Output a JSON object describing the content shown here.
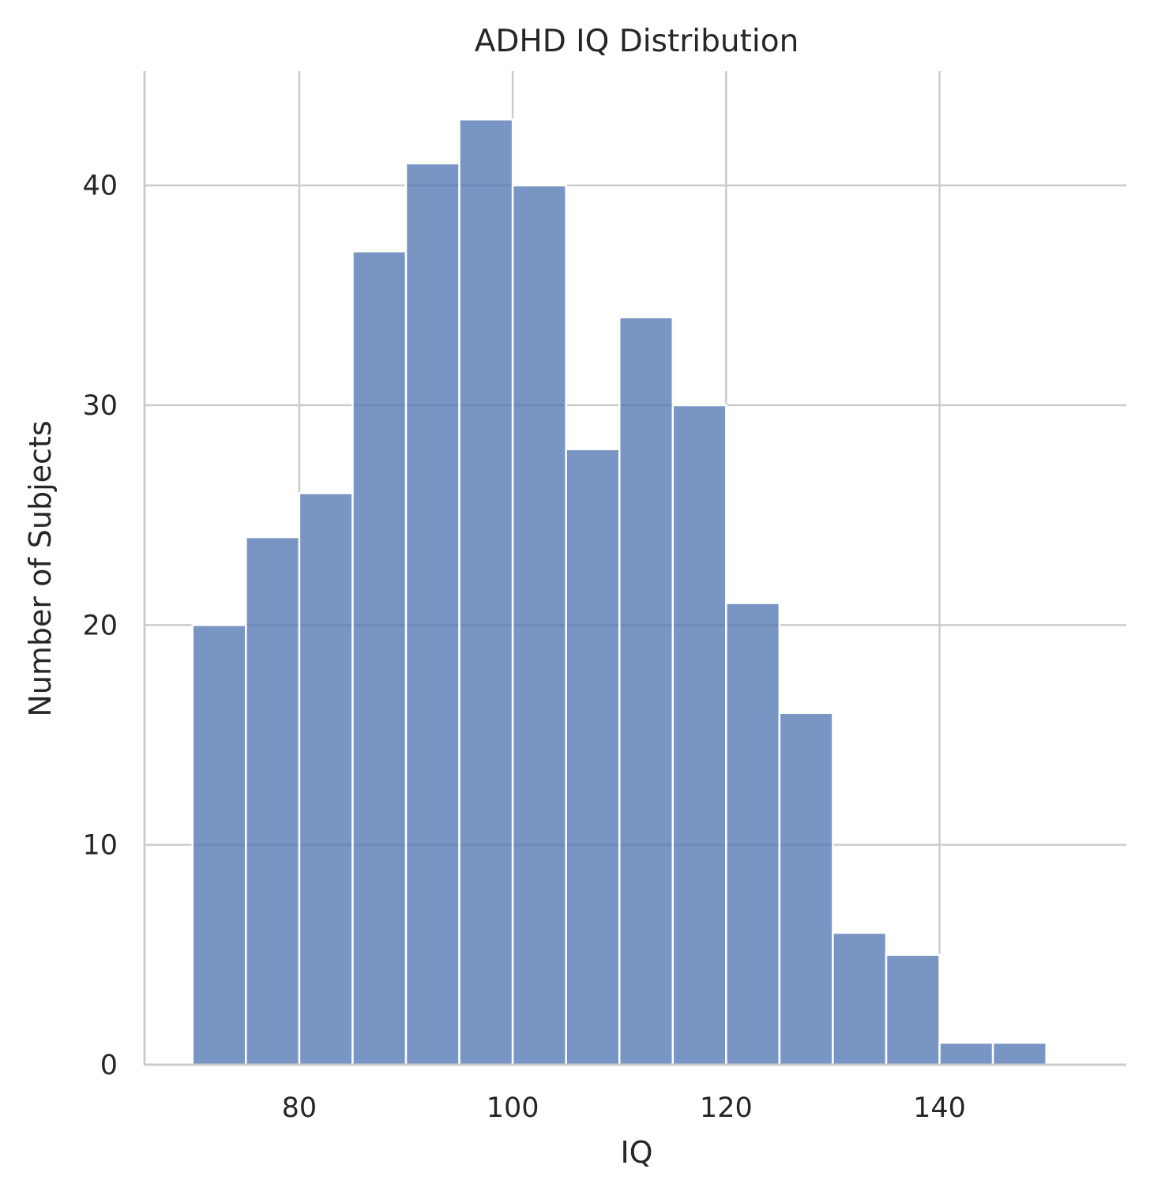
{
  "chart_data": {
    "type": "bar",
    "title": "ADHD IQ Distribution",
    "xlabel": "IQ",
    "ylabel": "Number of Subjects",
    "xlim": [
      65.5,
      157.5
    ],
    "ylim": [
      0,
      45.2
    ],
    "xticks": [
      80,
      100,
      120,
      140
    ],
    "yticks": [
      0,
      10,
      20,
      30,
      40
    ],
    "bin_edges": [
      70,
      75,
      80,
      85,
      90,
      95,
      100,
      105,
      110,
      115,
      120,
      125,
      130,
      135,
      140,
      145,
      150
    ],
    "counts": [
      20,
      24,
      26,
      37,
      41,
      43,
      40,
      28,
      34,
      30,
      21,
      16,
      6,
      5,
      1,
      1
    ],
    "grid": true,
    "legend": "none",
    "bar_color": "#4c72b0",
    "grid_color": "#cccccc"
  }
}
